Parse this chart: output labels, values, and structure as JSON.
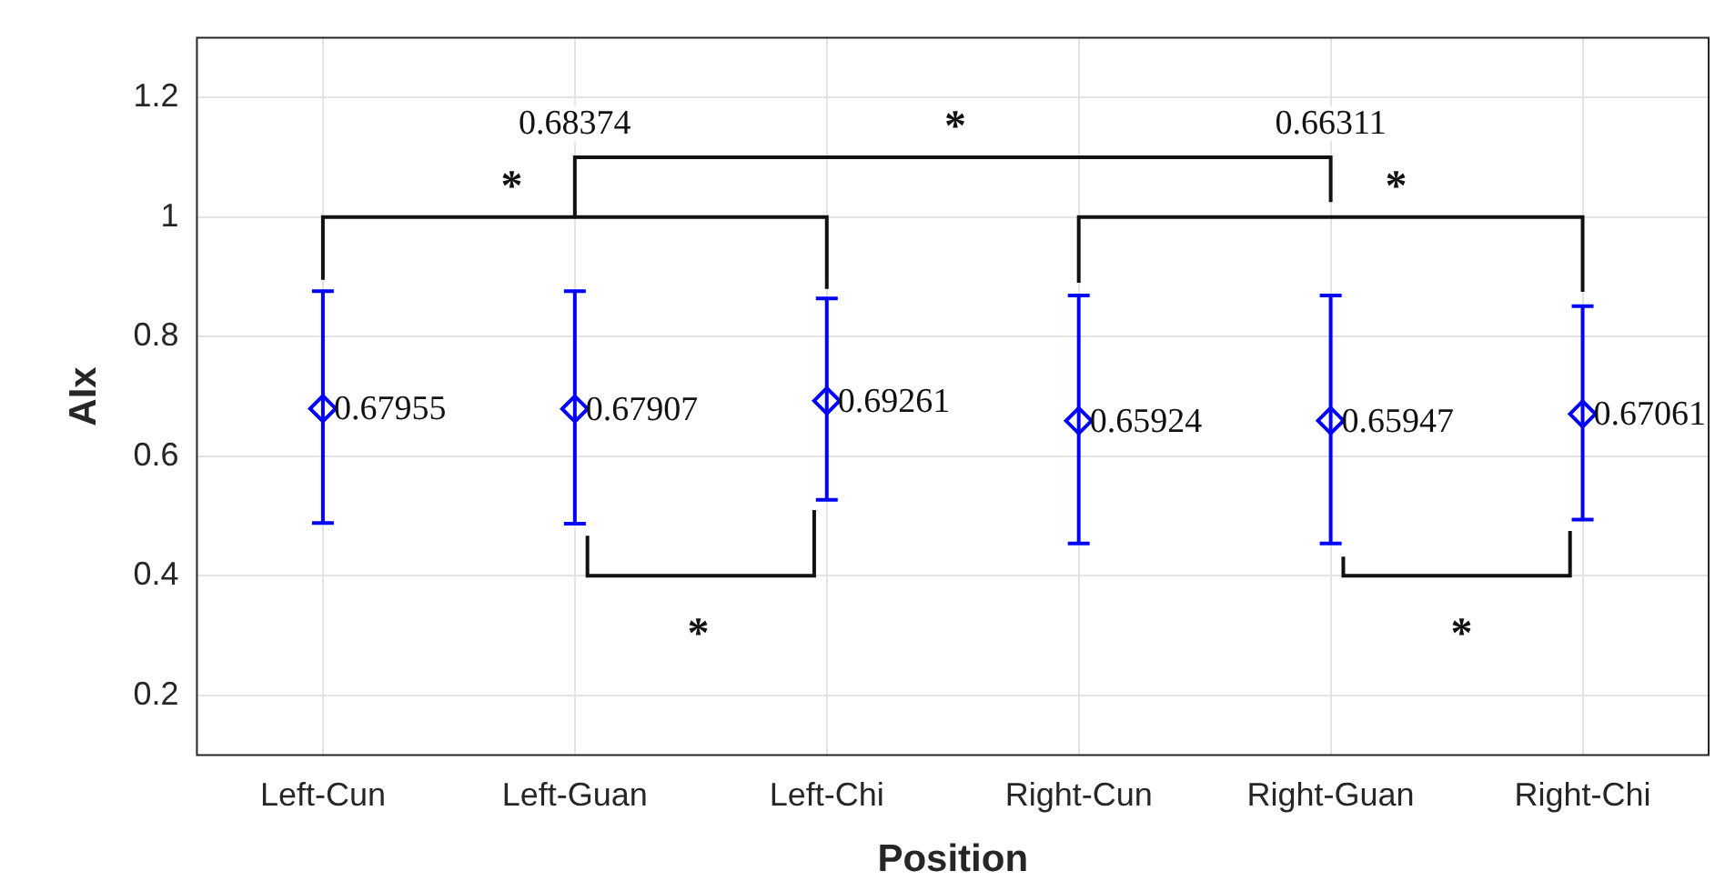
{
  "chart_data": {
    "type": "scatter",
    "xlabel": "Position",
    "ylabel": "AIx",
    "categories": [
      "Left-Cun",
      "Left-Guan",
      "Left-Chi",
      "Right-Cun",
      "Right-Guan",
      "Right-Chi"
    ],
    "series": [
      {
        "color": "#0000ff",
        "values": [
          0.67955,
          0.67907,
          0.69261,
          0.65924,
          0.65947,
          0.67061
        ],
        "errors": [
          [
            0.488,
            0.876
          ],
          [
            0.487,
            0.876
          ],
          [
            0.527,
            0.864
          ],
          [
            0.454,
            0.869
          ],
          [
            0.454,
            0.869
          ],
          [
            0.494,
            0.851
          ]
        ]
      }
    ],
    "ylim": [
      0.1,
      1.3
    ],
    "yticks": [
      0.2,
      0.4,
      0.6,
      0.8,
      1,
      1.2
    ],
    "grid": true,
    "marker": "diamond",
    "data_labels": true,
    "annotations": [
      "0.68374",
      "0.66311",
      "*",
      "*",
      "*",
      "*",
      "*"
    ]
  }
}
